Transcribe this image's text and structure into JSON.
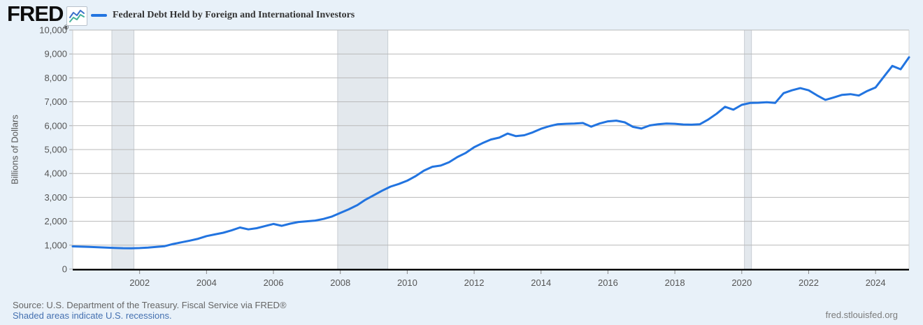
{
  "page": {
    "background": "#e8f1f9",
    "plot_background": "#ffffff"
  },
  "header": {
    "logo_text": "FRED",
    "logo_registered": "®",
    "sparkline_icon": {
      "line1_color": "#3a70c9",
      "line2_color": "#46b29b"
    },
    "legend": {
      "series_color": "#2274e0",
      "label": "Federal Debt Held by Foreign and International Investors"
    }
  },
  "footer": {
    "source_line": "Source: U.S. Department of the Treasury. Fiscal Service via FRED®",
    "recession_note": "Shaded areas indicate U.S. recessions.",
    "recession_note_color": "#4470b0",
    "site_link": "fred.stlouisfed.org"
  },
  "chart_data": {
    "type": "line",
    "title": "Federal Debt Held by Foreign and International Investors",
    "xlabel": "",
    "ylabel": "Billions of Dollars",
    "ylim": [
      0,
      10000
    ],
    "xlim": [
      2000,
      2025
    ],
    "grid": "horizontal",
    "legend_position": "top-left",
    "line_color": "#2274e0",
    "line_width": 3,
    "grid_color": "#b9b9b9",
    "recession_band_color": "#e3e8ed",
    "recession_bands": [
      [
        2001.17,
        2001.83
      ],
      [
        2007.92,
        2009.42
      ],
      [
        2020.08,
        2020.29
      ]
    ],
    "y_ticks": {
      "values": [
        0,
        1000,
        2000,
        3000,
        4000,
        5000,
        6000,
        7000,
        8000,
        9000,
        10000
      ],
      "labels": [
        "0",
        "1,000",
        "2,000",
        "3,000",
        "4,000",
        "5,000",
        "6,000",
        "7,000",
        "8,000",
        "9,000",
        "10,000"
      ]
    },
    "x_ticks": {
      "values": [
        2002,
        2004,
        2006,
        2008,
        2010,
        2012,
        2014,
        2016,
        2018,
        2020,
        2022,
        2024
      ],
      "labels": [
        "2002",
        "2004",
        "2006",
        "2008",
        "2010",
        "2012",
        "2014",
        "2016",
        "2018",
        "2020",
        "2022",
        "2024"
      ]
    },
    "series": [
      {
        "name": "Federal Debt Held by Foreign and International Investors",
        "units": "Billions of Dollars",
        "frequency": "quarterly",
        "x": [
          2000.0,
          2000.25,
          2000.5,
          2000.75,
          2001.0,
          2001.25,
          2001.5,
          2001.75,
          2002.0,
          2002.25,
          2002.5,
          2002.75,
          2003.0,
          2003.25,
          2003.5,
          2003.75,
          2004.0,
          2004.25,
          2004.5,
          2004.75,
          2005.0,
          2005.25,
          2005.5,
          2005.75,
          2006.0,
          2006.25,
          2006.5,
          2006.75,
          2007.0,
          2007.25,
          2007.5,
          2007.75,
          2008.0,
          2008.25,
          2008.5,
          2008.75,
          2009.0,
          2009.25,
          2009.5,
          2009.75,
          2010.0,
          2010.25,
          2010.5,
          2010.75,
          2011.0,
          2011.25,
          2011.5,
          2011.75,
          2012.0,
          2012.25,
          2012.5,
          2012.75,
          2013.0,
          2013.25,
          2013.5,
          2013.75,
          2014.0,
          2014.25,
          2014.5,
          2014.75,
          2015.0,
          2015.25,
          2015.5,
          2015.75,
          2016.0,
          2016.25,
          2016.5,
          2016.75,
          2017.0,
          2017.25,
          2017.5,
          2017.75,
          2018.0,
          2018.25,
          2018.5,
          2018.75,
          2019.0,
          2019.25,
          2019.5,
          2019.75,
          2020.0,
          2020.25,
          2020.5,
          2020.75,
          2021.0,
          2021.25,
          2021.5,
          2021.75,
          2022.0,
          2022.25,
          2022.5,
          2022.75,
          2023.0,
          2023.25,
          2023.5,
          2023.75,
          2024.0,
          2024.25,
          2024.5,
          2024.75,
          2025.0
        ],
        "y": [
          950,
          940,
          930,
          915,
          900,
          885,
          875,
          870,
          880,
          900,
          930,
          960,
          1050,
          1120,
          1190,
          1270,
          1380,
          1450,
          1520,
          1620,
          1740,
          1660,
          1710,
          1800,
          1890,
          1810,
          1900,
          1970,
          2000,
          2030,
          2100,
          2200,
          2350,
          2500,
          2670,
          2900,
          3090,
          3280,
          3450,
          3560,
          3700,
          3890,
          4120,
          4280,
          4330,
          4470,
          4690,
          4860,
          5100,
          5270,
          5420,
          5500,
          5670,
          5560,
          5600,
          5720,
          5870,
          5980,
          6060,
          6080,
          6090,
          6110,
          5960,
          6090,
          6180,
          6210,
          6140,
          5950,
          5880,
          6010,
          6060,
          6090,
          6080,
          6050,
          6040,
          6060,
          6260,
          6500,
          6790,
          6670,
          6870,
          6950,
          6960,
          6980,
          6950,
          7360,
          7480,
          7570,
          7480,
          7270,
          7080,
          7180,
          7290,
          7320,
          7260,
          7450,
          7600,
          8050,
          8500,
          8360,
          8860
        ]
      }
    ]
  }
}
